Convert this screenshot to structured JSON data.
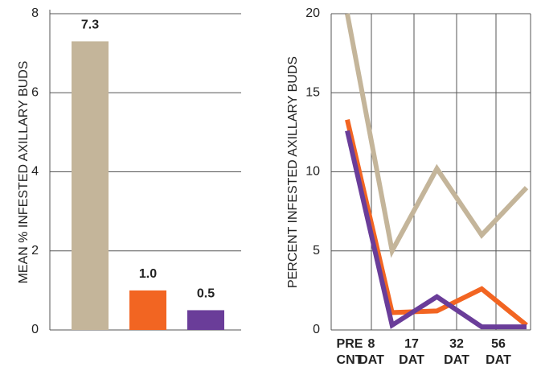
{
  "chart_data": [
    {
      "type": "bar",
      "y_label": "MEAN % INFESTED AXILLARY BUDS",
      "categories": [
        null,
        null,
        null
      ],
      "values": [
        7.3,
        1.0,
        0.5
      ],
      "value_labels": [
        "7.3",
        "1.0",
        "0.5"
      ],
      "colors": [
        "#c4b59a",
        "#f26522",
        "#6a3d99"
      ],
      "ylim": [
        0,
        8
      ],
      "yticks": [
        0,
        2,
        4,
        6,
        8
      ],
      "grid": true
    },
    {
      "type": "line",
      "y_label": "PERCENT INFESTED AXILLARY BUDS",
      "categories": [
        "PRE CNT",
        "8 DAT",
        "17 DAT",
        "32 DAT",
        "56 DAT"
      ],
      "series": [
        {
          "color": "#c4b59a",
          "values": [
            20,
            5,
            10.2,
            6,
            9
          ]
        },
        {
          "color": "#f26522",
          "values": [
            13.3,
            1.1,
            1.2,
            2.6,
            0.3
          ]
        },
        {
          "color": "#6a3d99",
          "values": [
            12.6,
            0.3,
            2.1,
            0.2,
            0.2
          ]
        }
      ],
      "ylim": [
        0,
        20
      ],
      "yticks": [
        0,
        5,
        10,
        15,
        20
      ],
      "grid": true
    }
  ]
}
